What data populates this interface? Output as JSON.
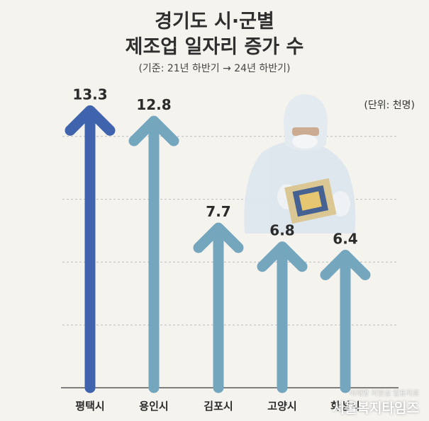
{
  "header": {
    "title_line1": "경기도 시·군별",
    "title_line2": "제조업 일자리 증가 수",
    "subtitle": "(기준: 21년 하반기 → 24년 하반기)",
    "unit": "(단위: 천명)"
  },
  "watermark": {
    "small": "이재명 의원실 발표자료",
    "big": "서울복지타임즈"
  },
  "chart_data": {
    "type": "bar",
    "categories": [
      "평택시",
      "용인시",
      "김포시",
      "고양시",
      "화성시"
    ],
    "values": [
      13.3,
      12.8,
      7.7,
      6.8,
      6.4
    ],
    "value_labels": [
      "13.3",
      "12.8",
      "7.7",
      "6.8",
      "6.4"
    ],
    "title": "경기도 시·군별 제조업 일자리 증가 수",
    "subtitle": "(기준: 21년 하반기 → 24년 하반기)",
    "unit": "(단위: 천명)",
    "ylim": [
      0,
      15
    ],
    "grid": true,
    "colors": {
      "highlight": "#3f63ad",
      "default": "#74a6be",
      "grid": "#bdbdbd"
    }
  }
}
